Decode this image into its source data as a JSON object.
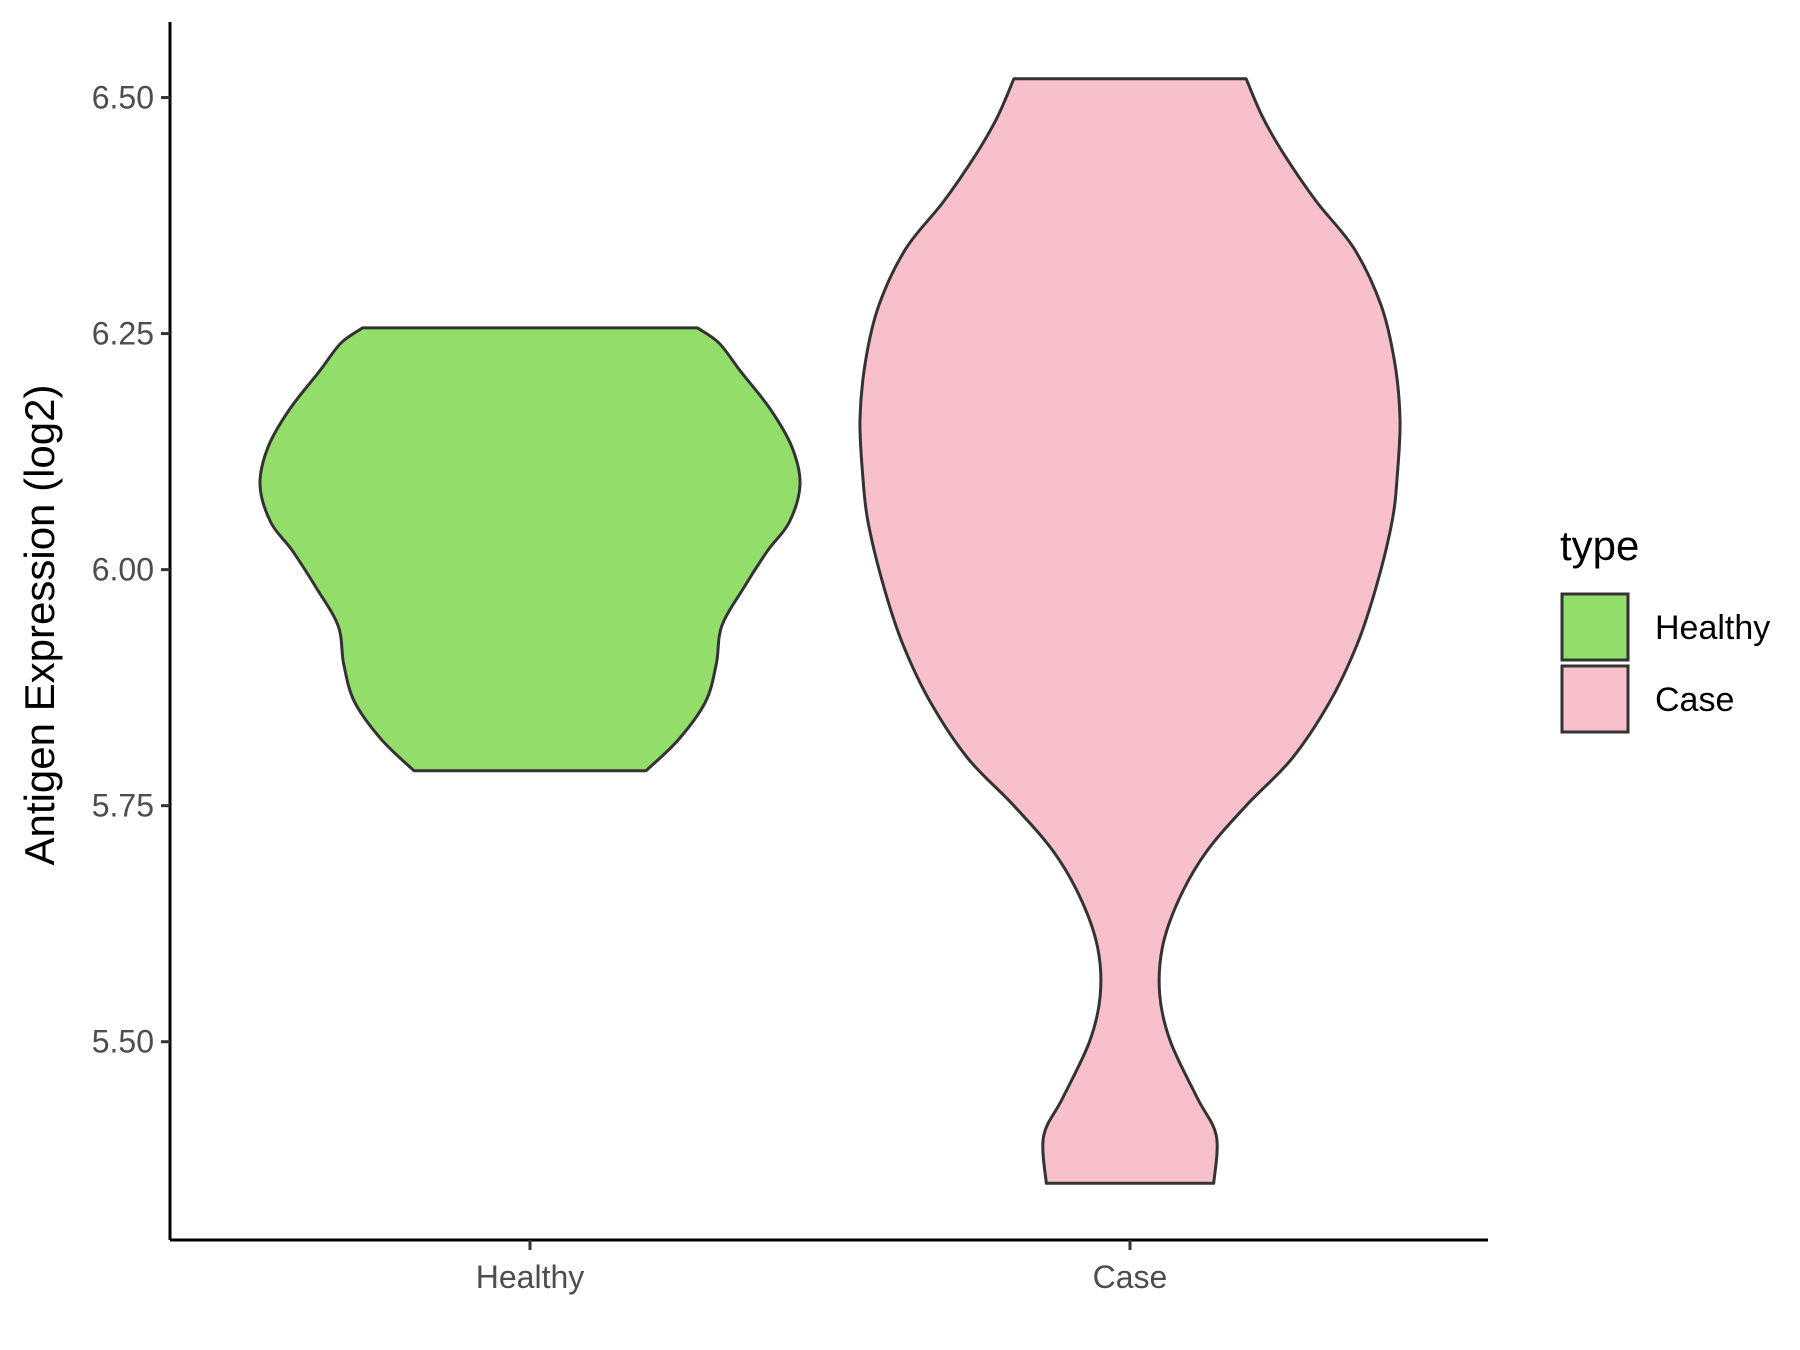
{
  "chart_data": {
    "type": "violin",
    "xlabel": "",
    "ylabel": "Antigen Expression (log2)",
    "categories": [
      "Healthy",
      "Case"
    ],
    "ylim": [
      5.29,
      6.58
    ],
    "yticks": [
      "5.50",
      "5.75",
      "6.00",
      "6.25",
      "6.50"
    ],
    "grid": false,
    "legend": {
      "title": "type",
      "position": "right",
      "entries": [
        "Healthy",
        "Case"
      ]
    },
    "colors": {
      "Healthy": "#93dd6b",
      "Case": "#f7c0cb",
      "outline": "#333333"
    },
    "series": [
      {
        "name": "Healthy",
        "min": 5.787,
        "max": 6.256,
        "density_profile": [
          [
            5.787,
            0.43
          ],
          [
            5.82,
            0.55
          ],
          [
            5.86,
            0.65
          ],
          [
            5.9,
            0.69
          ],
          [
            5.94,
            0.71
          ],
          [
            5.98,
            0.79
          ],
          [
            6.02,
            0.88
          ],
          [
            6.05,
            0.96
          ],
          [
            6.09,
            1.0
          ],
          [
            6.13,
            0.97
          ],
          [
            6.17,
            0.89
          ],
          [
            6.21,
            0.78
          ],
          [
            6.24,
            0.7
          ],
          [
            6.256,
            0.62
          ]
        ]
      },
      {
        "name": "Case",
        "min": 5.35,
        "max": 6.52,
        "density_profile": [
          [
            5.35,
            0.31
          ],
          [
            5.4,
            0.32
          ],
          [
            5.44,
            0.25
          ],
          [
            5.5,
            0.15
          ],
          [
            5.55,
            0.11
          ],
          [
            5.6,
            0.12
          ],
          [
            5.65,
            0.18
          ],
          [
            5.7,
            0.28
          ],
          [
            5.75,
            0.43
          ],
          [
            5.8,
            0.6
          ],
          [
            5.86,
            0.74
          ],
          [
            5.92,
            0.84
          ],
          [
            5.98,
            0.91
          ],
          [
            6.05,
            0.97
          ],
          [
            6.1,
            0.99
          ],
          [
            6.16,
            1.0
          ],
          [
            6.22,
            0.98
          ],
          [
            6.28,
            0.93
          ],
          [
            6.34,
            0.83
          ],
          [
            6.39,
            0.69
          ],
          [
            6.44,
            0.57
          ],
          [
            6.48,
            0.49
          ],
          [
            6.52,
            0.43
          ]
        ]
      }
    ]
  }
}
